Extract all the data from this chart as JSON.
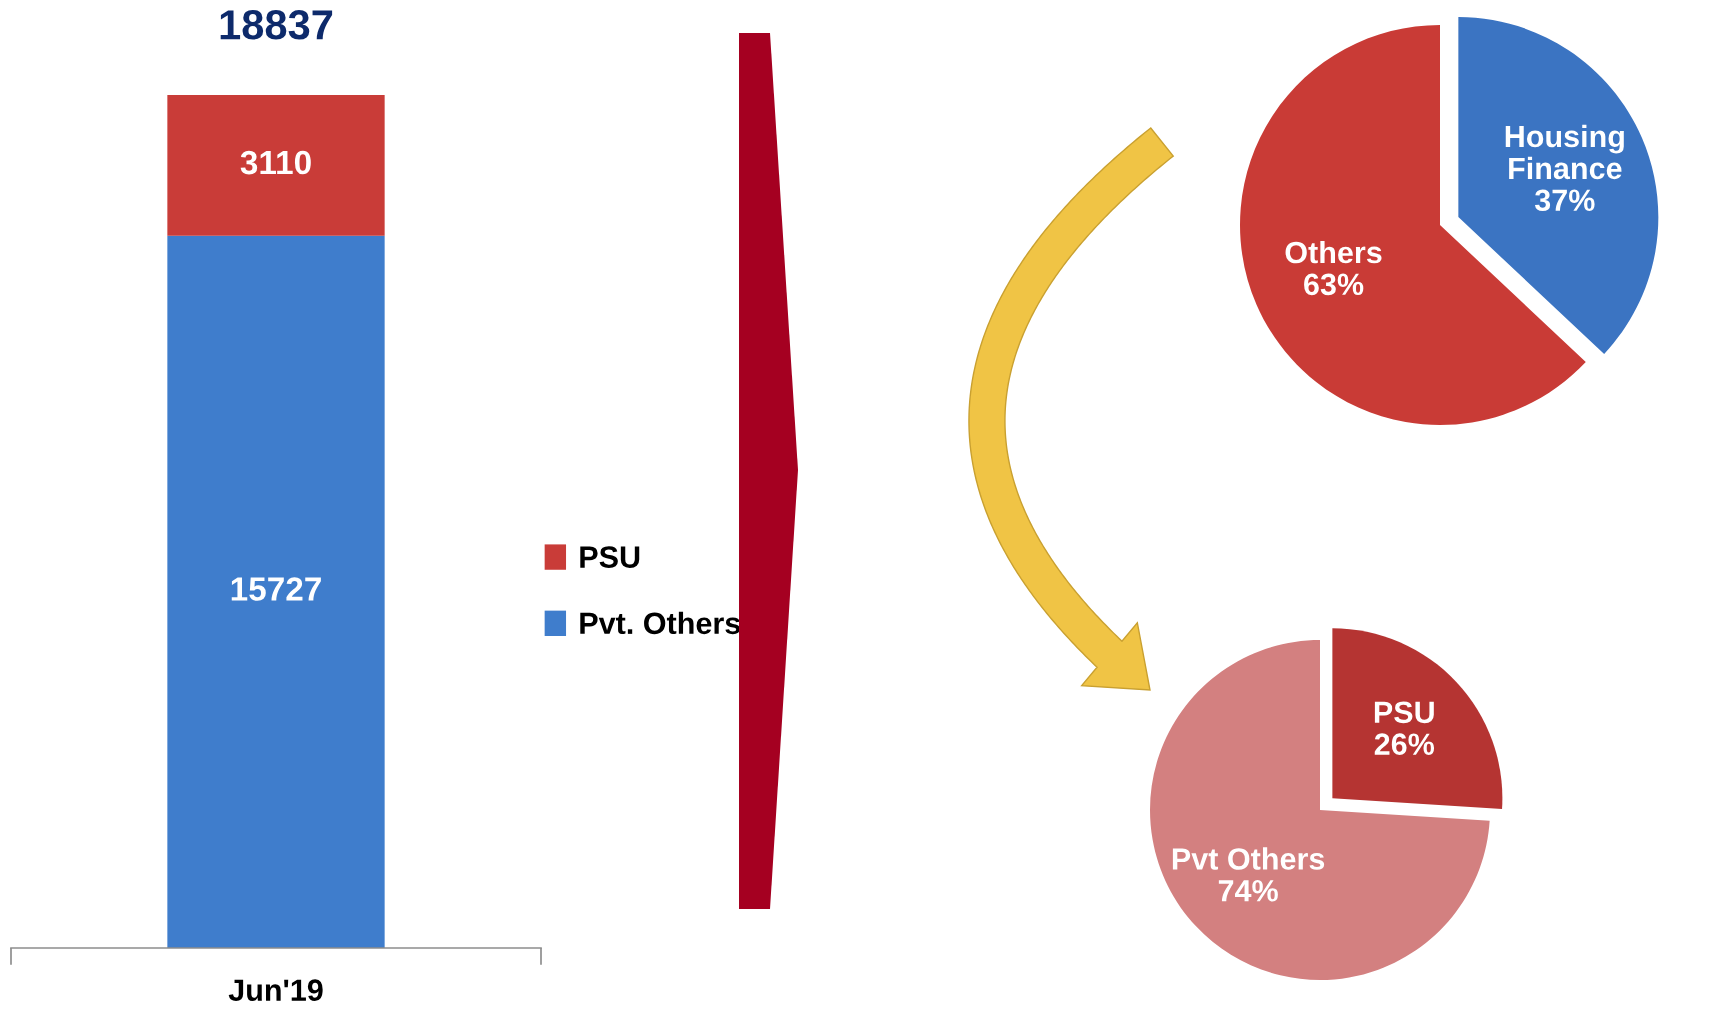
{
  "chart_data": [
    {
      "type": "bar",
      "stacked": true,
      "categories": [
        "Jun'19"
      ],
      "series": [
        {
          "name": "Pvt. Others",
          "color": "#3f7dcc",
          "values": [
            15727
          ]
        },
        {
          "name": "PSU",
          "color": "#c93c38",
          "values": [
            3110
          ]
        }
      ],
      "data_labels": true,
      "totals": [
        "18837"
      ],
      "legend": "right",
      "tick_labels": "x"
    },
    {
      "type": "pie",
      "categories": [
        "Others",
        "Housing Finance"
      ],
      "values": [
        63,
        37
      ],
      "value_labels": [
        "63%",
        "37%"
      ],
      "colors": [
        "#c93b36",
        "#3b74c2"
      ]
    },
    {
      "type": "pie",
      "categories": [
        "Pvt Others",
        "PSU"
      ],
      "values": [
        74,
        26
      ],
      "value_labels": [
        "74%",
        "26%"
      ],
      "colors": [
        "#d38080",
        "#b53432"
      ]
    }
  ]
}
